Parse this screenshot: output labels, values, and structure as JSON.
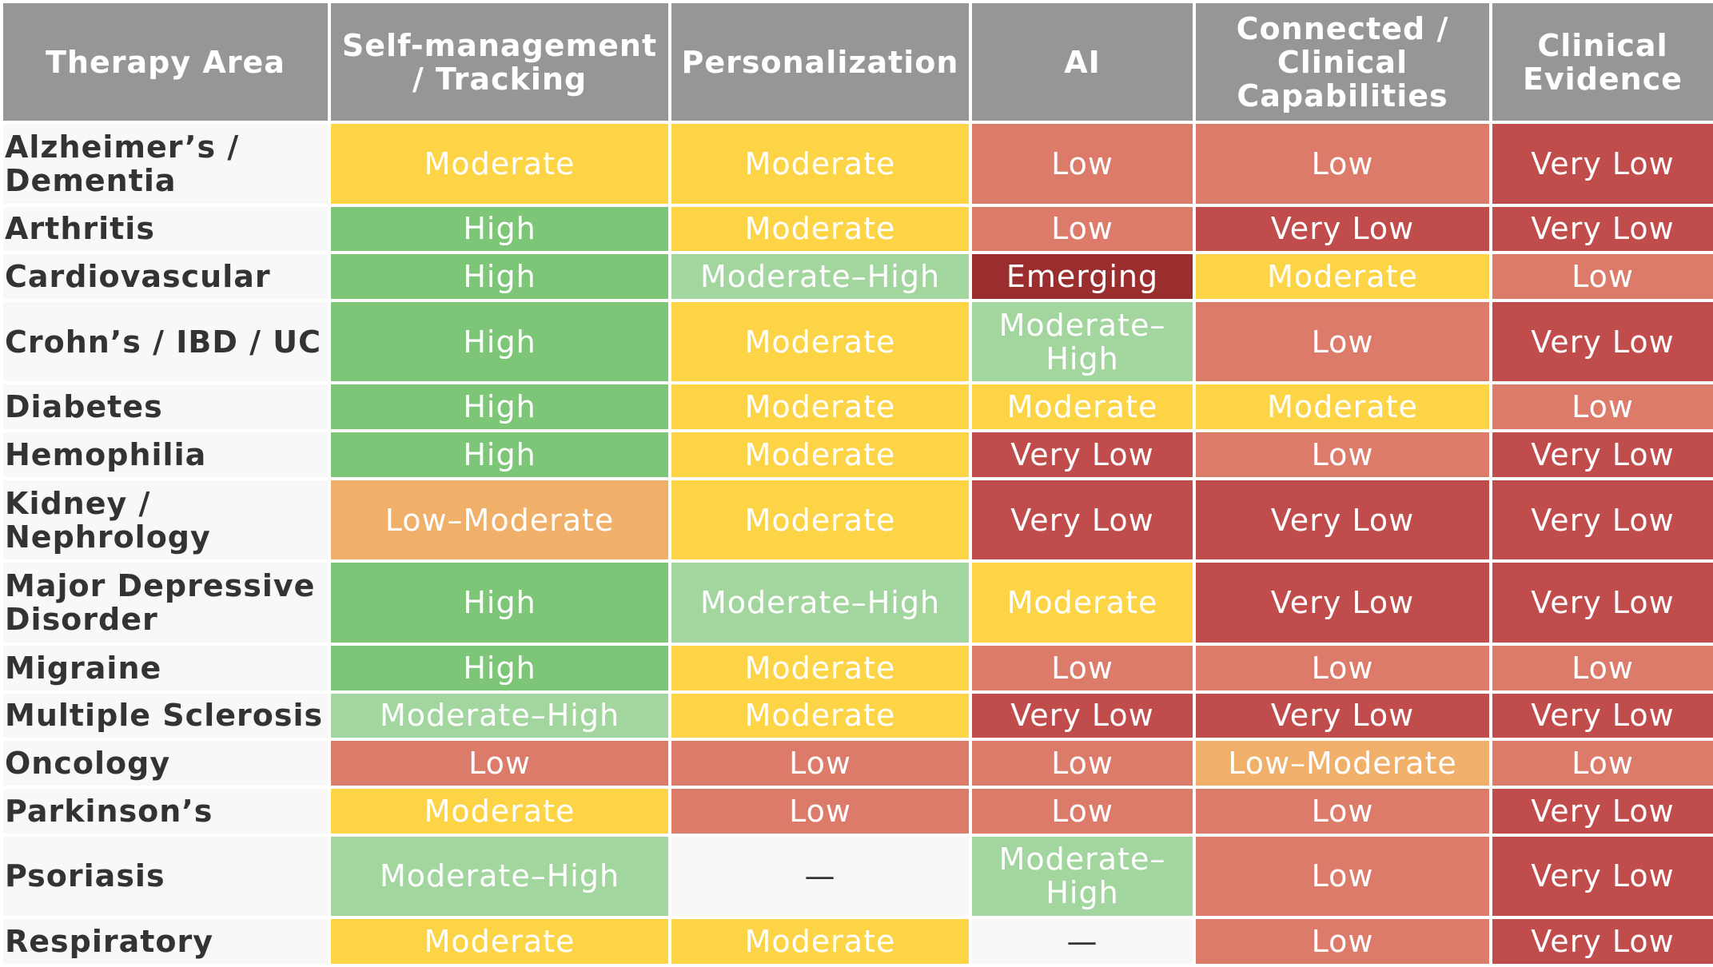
{
  "headers": [
    "Therapy Area",
    "Self-management / Tracking",
    "Personalization",
    "AI",
    "Connected / Clinical Capabilities",
    "Clinical Evidence"
  ],
  "colors": {
    "header_bg": "#969696",
    "area_bg": "#f8f8f8",
    "High": "#7dc678",
    "Moderate–High": "#a3d69e",
    "Moderate": "#fdd446",
    "Low–Moderate": "#f0b06a",
    "Low": "#dd7b6a",
    "Very Low": "#c14c4c",
    "Emerging": "#9a2e2e",
    "—": "#f8f8f8"
  },
  "rows": [
    {
      "area": "Alzheimer’s / Dementia",
      "cells": [
        "Moderate",
        "Moderate",
        "Low",
        "Low",
        "Very Low"
      ]
    },
    {
      "area": "Arthritis",
      "cells": [
        "High",
        "Moderate",
        "Low",
        "Very Low",
        "Very Low"
      ]
    },
    {
      "area": "Cardiovascular",
      "cells": [
        "High",
        "Moderate–High",
        "Emerging",
        "Moderate",
        "Low"
      ]
    },
    {
      "area": "Crohn’s / IBD / UC",
      "cells": [
        "High",
        "Moderate",
        "Moderate–High",
        "Low",
        "Very Low"
      ]
    },
    {
      "area": "Diabetes",
      "cells": [
        "High",
        "Moderate",
        "Moderate",
        "Moderate",
        "Low"
      ]
    },
    {
      "area": "Hemophilia",
      "cells": [
        "High",
        "Moderate",
        "Very Low",
        "Low",
        "Very Low"
      ]
    },
    {
      "area": "Kidney / Nephrology",
      "cells": [
        "Low–Moderate",
        "Moderate",
        "Very Low",
        "Very Low",
        "Very Low"
      ]
    },
    {
      "area": "Major Depressive Disorder",
      "cells": [
        "High",
        "Moderate–High",
        "Moderate",
        "Very Low",
        "Very Low"
      ]
    },
    {
      "area": "Migraine",
      "cells": [
        "High",
        "Moderate",
        "Low",
        "Low",
        "Low"
      ]
    },
    {
      "area": "Multiple Sclerosis",
      "cells": [
        "Moderate–High",
        "Moderate",
        "Very Low",
        "Very Low",
        "Very Low"
      ]
    },
    {
      "area": "Oncology",
      "cells": [
        "Low",
        "Low",
        "Low",
        "Low–Moderate",
        "Low"
      ]
    },
    {
      "area": "Parkinson’s",
      "cells": [
        "Moderate",
        "Low",
        "Low",
        "Low",
        "Very Low"
      ]
    },
    {
      "area": "Psoriasis",
      "cells": [
        "Moderate–High",
        "—",
        "Moderate–High",
        "Low",
        "Very Low"
      ]
    },
    {
      "area": "Respiratory",
      "cells": [
        "Moderate",
        "Moderate",
        "—",
        "Low",
        "Very Low"
      ]
    }
  ]
}
